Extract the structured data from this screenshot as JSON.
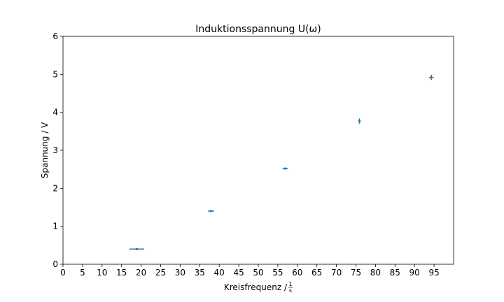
{
  "chart_data": {
    "type": "scatter",
    "title": "Induktionsspannung U(ω)",
    "xlabel": "Kreisfrequenz / ",
    "xlabel_fraction": {
      "numerator": "1",
      "denominator": "s"
    },
    "ylabel": "Spannung  / V",
    "xlim": [
      0,
      100
    ],
    "ylim": [
      0,
      6
    ],
    "xticks": [
      0,
      5,
      10,
      15,
      20,
      25,
      30,
      35,
      40,
      45,
      50,
      55,
      60,
      65,
      70,
      75,
      80,
      85,
      90,
      95
    ],
    "yticks": [
      0,
      1,
      2,
      3,
      4,
      5,
      6
    ],
    "grid": false,
    "color": "#1f77b4",
    "series": [
      {
        "x": [
          18.9,
          37.9,
          56.9,
          75.9,
          94.3
        ],
        "y": [
          0.4,
          1.4,
          2.52,
          3.77,
          4.92
        ],
        "xerr": [
          1.9,
          0.8,
          0.7,
          0.3,
          0.6
        ],
        "yerr": [
          0.01,
          0.02,
          0.03,
          0.07,
          0.07
        ]
      }
    ]
  }
}
